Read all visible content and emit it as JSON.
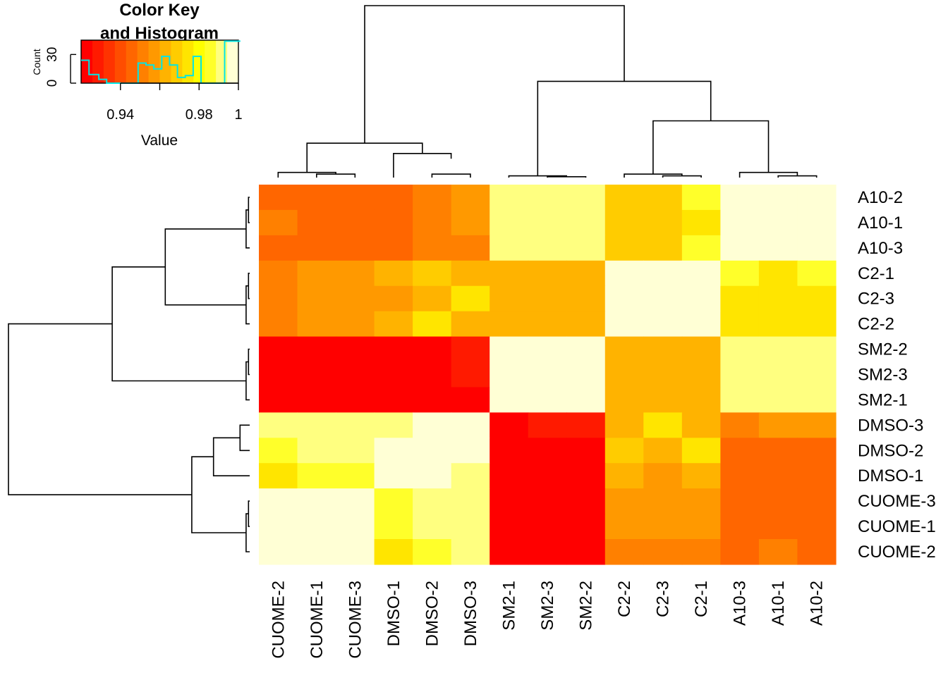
{
  "chart_data": {
    "type": "heatmap",
    "row_labels": [
      "A10-2",
      "A10-1",
      "A10-3",
      "C2-1",
      "C2-3",
      "C2-2",
      "SM2-2",
      "SM2-3",
      "SM2-1",
      "DMSO-3",
      "DMSO-2",
      "DMSO-1",
      "CUOME-3",
      "CUOME-1",
      "CUOME-2"
    ],
    "col_labels": [
      "CUOME-2",
      "CUOME-1",
      "CUOME-3",
      "DMSO-1",
      "DMSO-2",
      "DMSO-3",
      "SM2-1",
      "SM2-3",
      "SM2-2",
      "C2-2",
      "C2-3",
      "C2-1",
      "A10-3",
      "A10-1",
      "A10-2"
    ],
    "values": [
      [
        0.945,
        0.945,
        0.945,
        0.945,
        0.95,
        0.955,
        0.99,
        0.99,
        0.99,
        0.97,
        0.97,
        0.985,
        1.0,
        1.0,
        1.0
      ],
      [
        0.95,
        0.945,
        0.945,
        0.945,
        0.95,
        0.955,
        0.99,
        0.99,
        0.99,
        0.97,
        0.97,
        0.975,
        1.0,
        1.0,
        1.0
      ],
      [
        0.943,
        0.945,
        0.945,
        0.945,
        0.95,
        0.95,
        0.99,
        0.99,
        0.99,
        0.97,
        0.97,
        0.985,
        1.0,
        1.0,
        1.0
      ],
      [
        0.95,
        0.96,
        0.96,
        0.965,
        0.97,
        0.965,
        0.965,
        0.965,
        0.965,
        1.0,
        1.0,
        1.0,
        0.985,
        0.975,
        0.985
      ],
      [
        0.95,
        0.955,
        0.955,
        0.96,
        0.965,
        0.975,
        0.965,
        0.965,
        0.965,
        1.0,
        1.0,
        1.0,
        0.975,
        0.975,
        0.975
      ],
      [
        0.95,
        0.96,
        0.96,
        0.965,
        0.975,
        0.965,
        0.965,
        0.965,
        0.965,
        1.0,
        1.0,
        1.0,
        0.975,
        0.975,
        0.975
      ],
      [
        0.92,
        0.92,
        0.92,
        0.92,
        0.925,
        0.93,
        1.0,
        1.0,
        1.0,
        0.965,
        0.965,
        0.965,
        0.99,
        0.99,
        0.99
      ],
      [
        0.92,
        0.92,
        0.92,
        0.92,
        0.925,
        0.93,
        1.0,
        1.0,
        1.0,
        0.965,
        0.965,
        0.965,
        0.99,
        0.99,
        0.99
      ],
      [
        0.92,
        0.92,
        0.92,
        0.92,
        0.925,
        0.925,
        1.0,
        1.0,
        1.0,
        0.965,
        0.965,
        0.965,
        0.99,
        0.99,
        0.99
      ],
      [
        0.99,
        0.99,
        0.99,
        0.99,
        1.0,
        1.0,
        0.925,
        0.93,
        0.93,
        0.965,
        0.975,
        0.965,
        0.95,
        0.955,
        0.955
      ],
      [
        0.985,
        0.99,
        0.99,
        0.995,
        1.0,
        1.0,
        0.925,
        0.925,
        0.925,
        0.97,
        0.965,
        0.975,
        0.945,
        0.945,
        0.945
      ],
      [
        0.975,
        0.985,
        0.985,
        1.0,
        0.995,
        0.99,
        0.92,
        0.92,
        0.92,
        0.965,
        0.96,
        0.965,
        0.943,
        0.943,
        0.943
      ],
      [
        1.0,
        1.0,
        1.0,
        0.985,
        0.99,
        0.99,
        0.92,
        0.92,
        0.92,
        0.96,
        0.955,
        0.96,
        0.943,
        0.943,
        0.943
      ],
      [
        1.0,
        1.0,
        1.0,
        0.985,
        0.99,
        0.99,
        0.92,
        0.92,
        0.92,
        0.96,
        0.955,
        0.96,
        0.943,
        0.943,
        0.943
      ],
      [
        1.0,
        1.0,
        1.0,
        0.975,
        0.985,
        0.99,
        0.92,
        0.92,
        0.92,
        0.95,
        0.95,
        0.95,
        0.943,
        0.95,
        0.943
      ]
    ],
    "value_range": [
      0.92,
      1.0
    ],
    "color_scale": [
      "#FF0000",
      "#FF1A00",
      "#FF3300",
      "#FF4D00",
      "#FF6600",
      "#FF8000",
      "#FF9900",
      "#FFB300",
      "#FFCC00",
      "#FFE500",
      "#FFFF00",
      "#FFFF2A",
      "#FFFF80",
      "#FFFFD5"
    ],
    "col_dendrogram": [
      [
        0,
        [
          8.0,
          0.23
        ],
        [
          1.0,
          0.85
        ]
      ],
      [
        1,
        [
          0.0,
          0.03
        ],
        [
          1.5,
          0.02
        ]
      ],
      [
        2,
        [
          1.0,
          0.03
        ],
        [
          2.0,
          0.02
        ]
      ],
      [
        3,
        [
          4.0,
          0.11
        ],
        [
          5.0,
          0.02
        ]
      ],
      [
        4,
        [
          3.0,
          0.14
        ],
        [
          4.5,
          0.11
        ]
      ],
      [
        5,
        [
          0.75,
          0.2
        ],
        [
          3.75,
          0.14
        ]
      ],
      [
        6,
        [
          7.0,
          0.02
        ],
        [
          8.0,
          0.01
        ]
      ],
      [
        7,
        [
          9.0,
          0.05
        ],
        [
          10.0,
          0.01
        ]
      ],
      [
        8,
        [
          10.5,
          0.13
        ],
        [
          12.5,
          0.05
        ]
      ],
      [
        9,
        [
          12.0,
          0.05
        ],
        [
          13.5,
          0.01
        ]
      ],
      [
        10,
        [
          6.0,
          0.2
        ],
        [
          7.5,
          0.02
        ]
      ],
      [
        11,
        [
          11.5,
          0.28
        ],
        [
          12.75,
          0.13
        ]
      ],
      [
        12,
        [
          6.75,
          0.85
        ],
        [
          12.125,
          0.28
        ]
      ]
    ],
    "row_dendrogram": [
      [
        0,
        [
          0.0,
          0.01
        ],
        [
          1.0,
          0.01
        ]
      ],
      [
        1,
        [
          0.5,
          0.02
        ],
        [
          2.0,
          0.01
        ]
      ],
      [
        2,
        [
          1.25,
          0.34
        ],
        [
          4.0,
          0.02
        ]
      ],
      [
        3,
        [
          3.0,
          0.01
        ],
        [
          4.0,
          0.01
        ]
      ],
      [
        4,
        [
          3.5,
          0.02
        ],
        [
          5.0,
          0.01
        ]
      ],
      [
        5,
        [
          6.0,
          0.01
        ],
        [
          7.0,
          0.01
        ]
      ],
      [
        6,
        [
          6.5,
          0.02
        ],
        [
          8.0,
          0.01
        ]
      ],
      [
        7,
        [
          1.25,
          0.57
        ],
        [
          4.25,
          0.34
        ]
      ],
      [
        8,
        [
          7.25,
          0.57
        ],
        [
          9.0,
          0.02
        ]
      ],
      [
        9,
        [
          9.0,
          0.02
        ],
        [
          10.0,
          0.02
        ]
      ],
      [
        10,
        [
          9.5,
          0.15
        ],
        [
          11.0,
          0.02
        ]
      ],
      [
        11,
        [
          12.0,
          0.01
        ],
        [
          13.0,
          0.01
        ]
      ],
      [
        12,
        [
          12.5,
          0.02
        ],
        [
          14.0,
          0.01
        ]
      ],
      [
        13,
        [
          10.25,
          0.24
        ],
        [
          13.25,
          0.02
        ]
      ],
      [
        14,
        [
          2.75,
          0.98
        ],
        [
          11.75,
          0.24
        ]
      ]
    ],
    "key": {
      "title_line1": "Color Key",
      "title_line2": "and Histogram",
      "ylabel": "Count",
      "xlabel": "Value",
      "y_ticks": [
        "0",
        "30"
      ],
      "y_tick_values": [
        0,
        30
      ],
      "y_max": 45,
      "x_ticks": [
        "0.94",
        "0.98",
        "1"
      ],
      "x_tick_values": [
        0.94,
        0.98,
        1.0
      ],
      "hist_color": "#00E5E5",
      "histogram": [
        [
          0.92,
          24
        ],
        [
          0.925,
          9
        ],
        [
          0.929,
          4
        ],
        [
          0.933,
          0
        ],
        [
          0.937,
          0
        ],
        [
          0.941,
          0
        ],
        [
          0.945,
          0
        ],
        [
          0.949,
          21
        ],
        [
          0.953,
          19
        ],
        [
          0.957,
          15
        ],
        [
          0.961,
          28
        ],
        [
          0.965,
          19
        ],
        [
          0.969,
          6
        ],
        [
          0.973,
          8
        ],
        [
          0.977,
          28
        ],
        [
          0.981,
          0
        ],
        [
          0.985,
          0
        ],
        [
          0.989,
          0
        ],
        [
          0.993,
          44
        ],
        [
          0.997,
          44
        ]
      ]
    }
  }
}
